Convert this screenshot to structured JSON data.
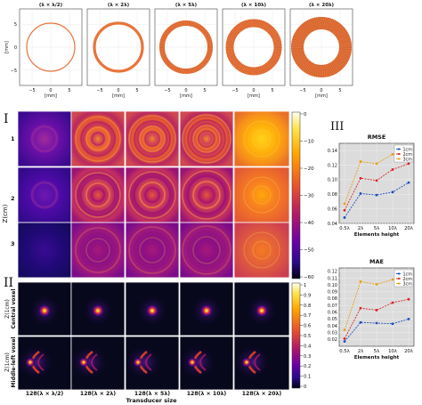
{
  "figure": {
    "top_panel": {
      "titles": [
        "(λ × λ/2)",
        "(λ × 2λ)",
        "(λ × 5λ)",
        "(λ × 10λ)",
        "(λ × 20λ)"
      ],
      "xlabel": "[mm]",
      "ylabel": "[mm]",
      "xticks": [
        "−5",
        "0",
        "5"
      ],
      "yticks": [
        "5",
        "0",
        "−5"
      ]
    },
    "section_I": {
      "label": "I",
      "ylabel": "Z(cm)",
      "rows": [
        "1",
        "2",
        "3"
      ],
      "colorbar_ticks": [
        "0",
        "−10",
        "−20",
        "−30",
        "−40",
        "−50",
        "−60"
      ]
    },
    "section_II": {
      "label": "II",
      "row_labels": [
        {
          "line1": "Z(1cm)",
          "line2": "Central voxel"
        },
        {
          "line1": "Z(1cm)",
          "line2": "Middle-left voxel"
        }
      ],
      "colorbar_ticks": [
        "1",
        "0.9",
        "0.8",
        "0.7",
        "0.6",
        "0.5",
        "0.4",
        "0.3",
        "0.2",
        "0.1",
        "0"
      ],
      "xticklabels": [
        "128(λ × λ/2)",
        "128(λ × 2λ)",
        "128(λ × 5λ)",
        "128(λ × 10λ)",
        "128(λ × 20λ)"
      ],
      "xlabel": "Transducer size"
    },
    "section_III": {
      "label": "III"
    }
  },
  "chart_data": [
    {
      "type": "line",
      "title": "RMSE",
      "xlabel": "Elements height",
      "ylabel": "",
      "categories": [
        "0.5λ",
        "2λ",
        "5λ",
        "10λ",
        "20λ"
      ],
      "ylim": [
        0.04,
        0.15
      ],
      "yticks": [
        0.04,
        0.06,
        0.08,
        0.1,
        0.12,
        0.14
      ],
      "grid": true,
      "legend": "top-right",
      "series": [
        {
          "name": "1cm",
          "color": "#1f4fbf",
          "values": [
            0.048,
            0.081,
            0.079,
            0.083,
            0.096
          ]
        },
        {
          "name": "2cm",
          "color": "#d62728",
          "values": [
            0.058,
            0.102,
            0.099,
            0.114,
            0.122
          ]
        },
        {
          "name": "3cm",
          "color": "#e8a317",
          "values": [
            0.067,
            0.125,
            0.122,
            0.135,
            0.141
          ]
        }
      ]
    },
    {
      "type": "line",
      "title": "MAE",
      "xlabel": "Elements height",
      "ylabel": "",
      "categories": [
        "0.5λ",
        "2λ",
        "5λ",
        "10λ",
        "20λ"
      ],
      "ylim": [
        0.01,
        0.125
      ],
      "yticks": [
        0.02,
        0.03,
        0.04,
        0.05,
        0.06,
        0.07,
        0.08,
        0.09,
        0.1,
        0.11,
        0.12
      ],
      "grid": true,
      "legend": "top-right",
      "series": [
        {
          "name": "1cm",
          "color": "#1f4fbf",
          "values": [
            0.017,
            0.045,
            0.044,
            0.043,
            0.05
          ]
        },
        {
          "name": "2cm",
          "color": "#d62728",
          "values": [
            0.021,
            0.066,
            0.063,
            0.074,
            0.079
          ]
        },
        {
          "name": "3cm",
          "color": "#e8a317",
          "values": [
            0.034,
            0.105,
            0.101,
            0.108,
            0.117
          ]
        }
      ]
    }
  ]
}
